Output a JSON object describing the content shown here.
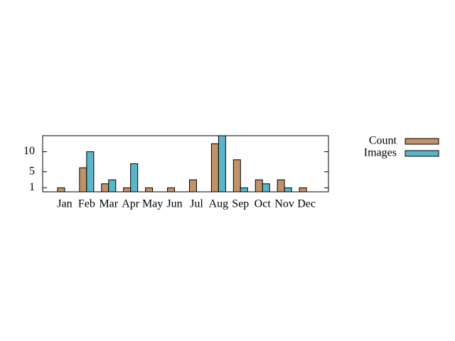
{
  "chart_data": {
    "type": "bar",
    "categories": [
      "Jan",
      "Feb",
      "Mar",
      "Apr",
      "May",
      "Jun",
      "Jul",
      "Aug",
      "Sep",
      "Oct",
      "Nov",
      "Dec"
    ],
    "series": [
      {
        "name": "Count",
        "color": "#c0926a",
        "values": [
          1,
          6,
          2,
          1,
          1,
          1,
          3,
          12,
          8,
          3,
          3,
          1
        ]
      },
      {
        "name": "Images",
        "color": "#5bb5c8",
        "values": [
          0,
          10,
          3,
          7,
          0,
          0,
          0,
          14,
          1,
          2,
          1,
          0
        ]
      }
    ],
    "ylim": [
      0,
      14
    ],
    "yticks": [
      1,
      5,
      10
    ],
    "legend": "outside-right"
  }
}
